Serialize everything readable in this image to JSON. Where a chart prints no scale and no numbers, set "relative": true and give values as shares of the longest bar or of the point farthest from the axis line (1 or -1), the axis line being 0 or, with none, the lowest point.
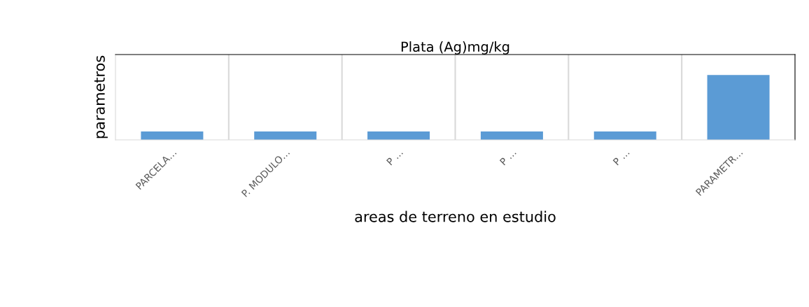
{
  "chart_data": {
    "type": "bar",
    "title": "Plata (Ag)mg/kg",
    "xlabel": "areas de terreno en estudio",
    "ylabel": "parametros",
    "categories": [
      "PARCELA…",
      "P. MODULO…",
      "P …",
      "P …",
      "P …",
      "PARAMETR…"
    ],
    "values": [
      0.13,
      0.13,
      0.13,
      0.13,
      0.13,
      1
    ],
    "color": "#5b9bd5",
    "relative": true,
    "grid": "x",
    "legend": false
  }
}
